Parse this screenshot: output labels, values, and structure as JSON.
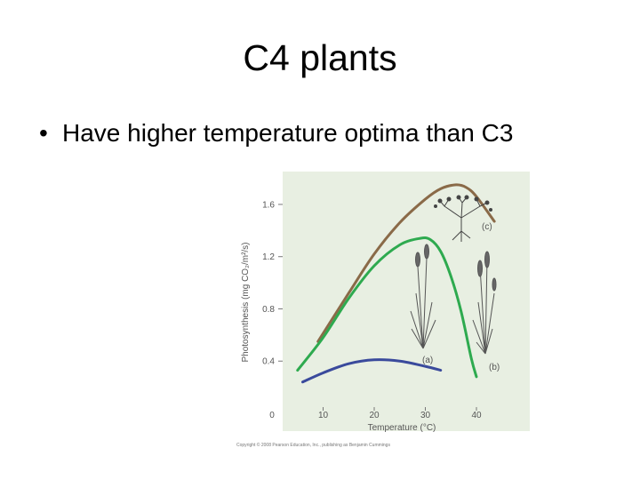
{
  "slide": {
    "title": "C4 plants",
    "bullet": "Have higher temperature optima than C3"
  },
  "chart_data": {
    "type": "line",
    "xlabel": "Temperature (°C)",
    "ylabel": "Photosynthesis (mg CO₂/m²/s)",
    "x_ticks": [
      0,
      10,
      20,
      30,
      40
    ],
    "y_ticks": [
      0.4,
      0.8,
      1.2,
      1.6
    ],
    "xlim": [
      0,
      48
    ],
    "ylim": [
      0,
      1.85
    ],
    "grid": false,
    "plot_background": "#e8efe2",
    "series": [
      {
        "label": "(c)",
        "color": "#8a6a48",
        "x": [
          9,
          15,
          20,
          25,
          30,
          33,
          36,
          38,
          40,
          43.5
        ],
        "y": [
          0.55,
          0.92,
          1.22,
          1.46,
          1.64,
          1.72,
          1.75,
          1.73,
          1.66,
          1.47
        ]
      },
      {
        "label": "(b)",
        "color": "#2eaa4f",
        "x": [
          5,
          10,
          15,
          20,
          25,
          29,
          31,
          33,
          35,
          37,
          39,
          40
        ],
        "y": [
          0.33,
          0.58,
          0.88,
          1.13,
          1.29,
          1.34,
          1.33,
          1.24,
          1.05,
          0.78,
          0.42,
          0.28
        ]
      },
      {
        "label": "(a)",
        "color": "#3a4a9c",
        "x": [
          6,
          10,
          15,
          20,
          25,
          30,
          33
        ],
        "y": [
          0.24,
          0.31,
          0.38,
          0.41,
          0.4,
          0.36,
          0.33
        ]
      }
    ],
    "copyright": "Copyright © 2008 Pearson Education, Inc., publishing as Benjamin Cummings"
  }
}
